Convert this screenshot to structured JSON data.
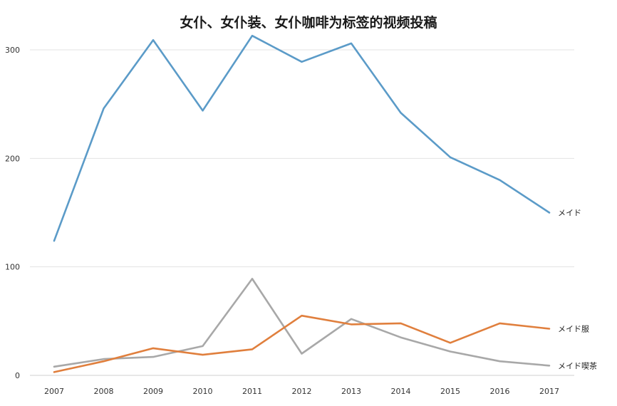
{
  "chart_data": {
    "type": "line",
    "title": "女仆、女仆装、女仆咖啡为标签的视频投稿",
    "xlabel": "",
    "ylabel": "",
    "x": [
      "2007",
      "2008",
      "2009",
      "2010",
      "2011",
      "2012",
      "2013",
      "2014",
      "2015",
      "2016",
      "2017"
    ],
    "ylim": [
      0,
      330
    ],
    "yticks": [
      0,
      100,
      200,
      300
    ],
    "grid": true,
    "legend": "inline-right",
    "series": [
      {
        "name": "メイド",
        "color": "#5b9bc8",
        "values": [
          124,
          246,
          309,
          244,
          313,
          289,
          306,
          242,
          201,
          180,
          150
        ]
      },
      {
        "name": "メイド服",
        "color": "#e07f3d",
        "values": [
          3,
          13,
          25,
          19,
          24,
          55,
          47,
          48,
          30,
          48,
          43
        ]
      },
      {
        "name": "メイド喫茶",
        "color": "#a8a8a8",
        "values": [
          8,
          15,
          17,
          27,
          89,
          20,
          52,
          35,
          22,
          13,
          9
        ]
      }
    ]
  }
}
